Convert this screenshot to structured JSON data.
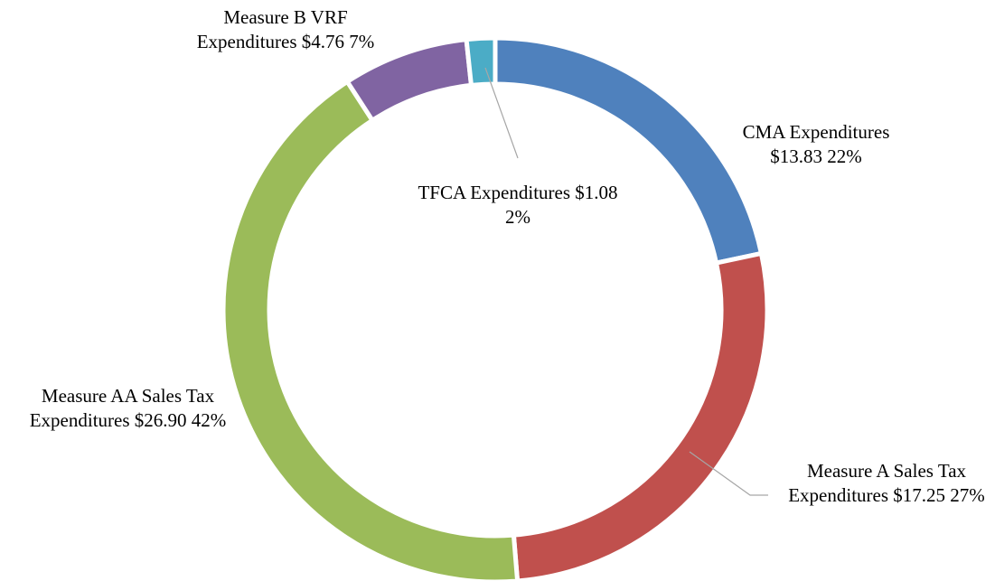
{
  "chart_data": {
    "type": "donut",
    "categories": [
      "CMA Expenditures",
      "Measure A Sales Tax Expenditures",
      "Measure AA Sales Tax Expenditures",
      "Measure B VRF Expenditures",
      "TFCA Expenditures"
    ],
    "values": [
      13.83,
      17.25,
      26.9,
      4.76,
      1.08
    ],
    "value_labels": [
      "$13.83",
      "$17.25",
      "$26.90",
      "$4.76",
      "$1.08"
    ],
    "percent_labels": [
      "22%",
      "27%",
      "42%",
      "7%",
      "2%"
    ],
    "colors": [
      "#4f81bd",
      "#c0504d",
      "#9bbb59",
      "#8064a2",
      "#4bacc6"
    ]
  }
}
